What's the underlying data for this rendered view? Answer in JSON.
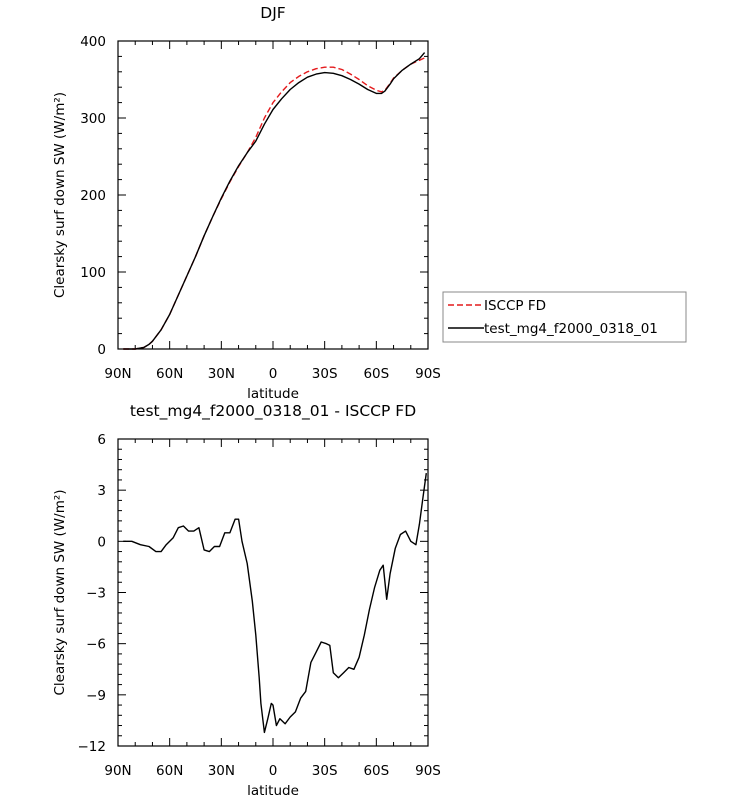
{
  "chart_data": [
    {
      "type": "line",
      "title": "DJF",
      "xlabel": "latitude",
      "ylabel": "Clearsky surf down SW (W/m²)",
      "xlim": [
        -90,
        90
      ],
      "ylim": [
        0,
        400
      ],
      "x_ticks": [
        -90,
        -60,
        -30,
        0,
        30,
        60,
        90
      ],
      "x_tick_labels": [
        "90N",
        "60N",
        "30N",
        "0",
        "30S",
        "60S",
        "90S"
      ],
      "y_ticks": [
        0,
        100,
        200,
        300,
        400
      ],
      "y_tick_labels": [
        "0",
        "100",
        "200",
        "300",
        "400"
      ],
      "legend_position": "right",
      "series": [
        {
          "name": "ISCCP FD",
          "color": "#e41a1c",
          "dash": true,
          "x": [
            -87,
            -80,
            -75,
            -72,
            -70,
            -65,
            -60,
            -55,
            -50,
            -45,
            -40,
            -35,
            -30,
            -25,
            -20,
            -15,
            -10,
            -5,
            0,
            5,
            10,
            15,
            20,
            25,
            30,
            35,
            40,
            45,
            50,
            55,
            60,
            63,
            65,
            68,
            70,
            75,
            80,
            85,
            88
          ],
          "y": [
            0,
            0,
            2,
            6,
            10,
            25,
            45,
            70,
            95,
            120,
            147,
            172,
            195,
            217,
            237,
            255,
            275,
            300,
            320,
            334,
            346,
            354,
            360,
            364,
            366,
            366,
            363,
            357,
            350,
            342,
            336,
            334,
            336,
            345,
            352,
            362,
            370,
            375,
            378
          ]
        },
        {
          "name": "test_mg4_f2000_0318_01",
          "color": "#000000",
          "dash": false,
          "x": [
            -87,
            -80,
            -75,
            -72,
            -70,
            -65,
            -60,
            -55,
            -50,
            -45,
            -40,
            -35,
            -30,
            -25,
            -20,
            -15,
            -10,
            -5,
            0,
            5,
            10,
            15,
            20,
            25,
            30,
            35,
            40,
            45,
            50,
            55,
            60,
            63,
            65,
            68,
            70,
            75,
            80,
            85,
            88
          ],
          "y": [
            0,
            0,
            2,
            6,
            10,
            25,
            45,
            70,
            95,
            120,
            147,
            172,
            196,
            218,
            238,
            255,
            270,
            292,
            311,
            325,
            337,
            346,
            353,
            357,
            359,
            358,
            355,
            350,
            344,
            337,
            332,
            332,
            335,
            344,
            351,
            362,
            370,
            377,
            385
          ]
        }
      ]
    },
    {
      "type": "line",
      "title": "test_mg4_f2000_0318_01 - ISCCP FD",
      "xlabel": "latitude",
      "ylabel": "Clearsky surf down SW (W/m²)",
      "xlim": [
        -90,
        90
      ],
      "ylim": [
        -12,
        6
      ],
      "x_ticks": [
        -90,
        -60,
        -30,
        0,
        30,
        60,
        90
      ],
      "x_tick_labels": [
        "90N",
        "60N",
        "30N",
        "0",
        "30S",
        "60S",
        "90S"
      ],
      "y_ticks": [
        -12,
        -9,
        -6,
        -3,
        0,
        3,
        6
      ],
      "y_tick_labels": [
        "−12",
        "−9",
        "−6",
        "−3",
        "0",
        "3",
        "6"
      ],
      "series": [
        {
          "color": "#000000",
          "x": [
            -87,
            -82,
            -77,
            -72,
            -68,
            -65,
            -62,
            -58,
            -55,
            -52,
            -49,
            -46,
            -43,
            -40,
            -37,
            -34,
            -31,
            -28,
            -25,
            -22,
            -20,
            -18,
            -15,
            -12,
            -10,
            -8,
            -7,
            -5,
            -3,
            -1,
            0,
            2,
            4,
            7,
            10,
            13,
            16,
            19,
            22,
            25,
            28,
            31,
            33,
            35,
            38,
            41,
            44,
            47,
            50,
            53,
            56,
            59,
            62,
            64,
            66,
            68,
            71,
            74,
            77,
            80,
            83,
            85,
            87,
            89
          ],
          "y": [
            0,
            0,
            -0.2,
            -0.3,
            -0.6,
            -0.6,
            -0.2,
            0.2,
            0.8,
            0.9,
            0.6,
            0.6,
            0.8,
            -0.5,
            -0.6,
            -0.3,
            -0.3,
            0.5,
            0.5,
            1.3,
            1.3,
            0,
            -1.3,
            -3.5,
            -5.5,
            -8.0,
            -9.5,
            -11.2,
            -10.4,
            -9.5,
            -9.6,
            -10.8,
            -10.4,
            -10.7,
            -10.3,
            -10.0,
            -9.2,
            -8.8,
            -7.1,
            -6.5,
            -5.9,
            -6.0,
            -6.1,
            -7.7,
            -8.0,
            -7.7,
            -7.4,
            -7.5,
            -6.8,
            -5.5,
            -4.0,
            -2.7,
            -1.7,
            -1.4,
            -3.4,
            -1.9,
            -0.4,
            0.4,
            0.6,
            0.0,
            -0.2,
            1.0,
            2.5,
            4.0
          ]
        }
      ]
    }
  ]
}
